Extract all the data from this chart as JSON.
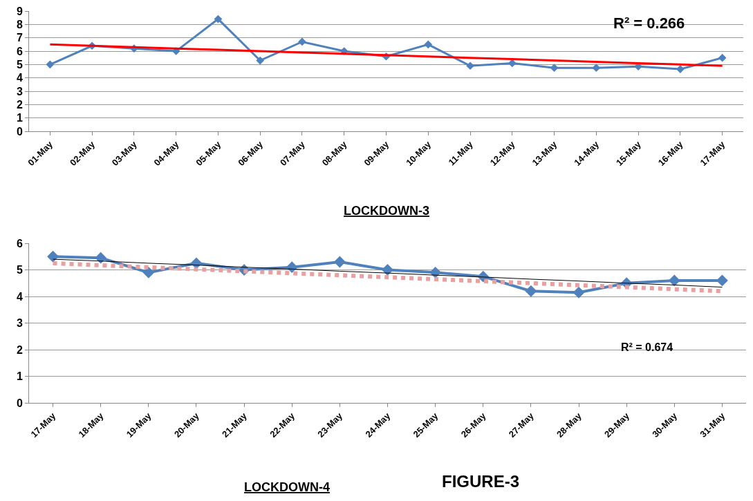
{
  "chart_data": [
    {
      "type": "line",
      "xlabel": "LOCKDOWN-3",
      "categories": [
        "01-May",
        "02-May",
        "03-May",
        "04-May",
        "05-May",
        "06-May",
        "07-May",
        "08-May",
        "09-May",
        "10-May",
        "11-May",
        "12-May",
        "13-May",
        "14-May",
        "15-May",
        "16-May",
        "17-May"
      ],
      "series": [
        {
          "color": "#4f81bd",
          "marker": "diamond",
          "values": [
            5.0,
            6.4,
            6.2,
            6.0,
            8.4,
            5.3,
            6.7,
            6.0,
            5.6,
            6.5,
            4.9,
            5.1,
            4.75,
            4.75,
            4.85,
            4.65,
            5.5
          ]
        },
        {
          "color": "#ff0000",
          "marker": "none",
          "line_style": "solid",
          "values": [
            6.5,
            6.4,
            6.3,
            6.2,
            6.1,
            6.0,
            5.9,
            5.8,
            5.7,
            5.6,
            5.5,
            5.4,
            5.3,
            5.2,
            5.1,
            5.0,
            4.9
          ]
        }
      ],
      "ylim": [
        0,
        9
      ],
      "yticks": [
        0,
        1,
        2,
        3,
        4,
        5,
        6,
        7,
        8,
        9
      ],
      "grid": "y",
      "annotations": [
        "R² = 0.266"
      ]
    },
    {
      "type": "line",
      "xlabel": "LOCKDOWN-4",
      "categories": [
        "17-May",
        "18-May",
        "19-May",
        "20-May",
        "21-May",
        "22-May",
        "23-May",
        "24-May",
        "25-May",
        "26-May",
        "27-May",
        "28-May",
        "29-May",
        "30-May",
        "31-May"
      ],
      "series": [
        {
          "color": "#4f81bd",
          "marker": "diamond",
          "values": [
            5.5,
            5.45,
            4.9,
            5.25,
            5.0,
            5.1,
            5.3,
            5.0,
            4.9,
            4.75,
            4.2,
            4.15,
            4.5,
            4.6,
            4.6
          ]
        },
        {
          "color": "#e8a0a0",
          "marker": "none",
          "line_style": "dotted",
          "values": [
            5.25,
            5.17,
            5.1,
            5.02,
            4.95,
            4.87,
            4.8,
            4.72,
            4.65,
            4.57,
            4.5,
            4.42,
            4.35,
            4.27,
            4.2
          ]
        },
        {
          "color": "#000000",
          "marker": "none",
          "line_style": "solid",
          "values": [
            5.4,
            5.33,
            5.25,
            5.18,
            5.1,
            5.03,
            4.95,
            4.88,
            4.8,
            4.73,
            4.65,
            4.58,
            4.5,
            4.43,
            4.35
          ]
        }
      ],
      "ylim": [
        0,
        6
      ],
      "yticks": [
        0,
        1,
        2,
        3,
        4,
        5,
        6
      ],
      "grid": "y",
      "annotations": [
        "R² = 0.674",
        "FIGURE-3"
      ]
    }
  ]
}
